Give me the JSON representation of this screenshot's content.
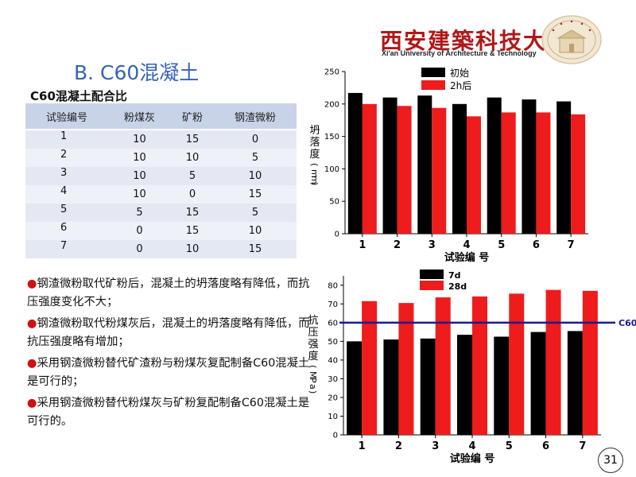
{
  "header": {
    "university_cn": "西安建築科技大學",
    "university_en": "Xi'an University of Architecture & Technology",
    "badge_colors": {
      "primary": "#b01818",
      "bg": "#f1e7d2"
    }
  },
  "slide": {
    "title": "B. C60混凝土",
    "page_number": "31"
  },
  "mix_table": {
    "title": "C60混凝土配合比",
    "headers": [
      "试验编号",
      "粉煤灰",
      "矿粉",
      "钢渣微粉"
    ],
    "rows": [
      [
        "1",
        "10",
        "15",
        "0"
      ],
      [
        "2",
        "10",
        "10",
        "5"
      ],
      [
        "3",
        "10",
        "5",
        "10"
      ],
      [
        "4",
        "10",
        "0",
        "15"
      ],
      [
        "5",
        "5",
        "15",
        "5"
      ],
      [
        "6",
        "0",
        "15",
        "10"
      ],
      [
        "7",
        "0",
        "10",
        "15"
      ]
    ]
  },
  "bullets": [
    "钢渣微粉取代矿粉后，混凝土的坍落度略有降低，而抗压强度变化不大；",
    "钢渣微粉取代粉煤灰后，混凝土的坍落度略有降低，而抗压强度略有增加；",
    "采用钢渣微粉替代矿渣粉与粉煤灰复配制备C60混凝土是可行的；",
    "采用钢渣微粉替代粉煤灰与矿粉复配制备C60混凝土是可行的。"
  ],
  "colors": {
    "black_series": "#000000",
    "red_series": "#ee1c1c",
    "c60_line": "#1a1a8c",
    "title_blue": "#3562b6"
  },
  "chart_data": [
    {
      "type": "bar",
      "categories": [
        "1",
        "2",
        "3",
        "4",
        "5",
        "6",
        "7"
      ],
      "series": [
        {
          "name": "初始",
          "values": [
            217,
            210,
            213,
            200,
            210,
            207,
            204
          ]
        },
        {
          "name": "2h后",
          "values": [
            200,
            197,
            194,
            181,
            187,
            187,
            184
          ]
        }
      ],
      "xlabel": "试验编 号",
      "ylabel": "坍落度(mm)",
      "ylim": [
        0,
        250
      ],
      "yticks": [
        0,
        50,
        100,
        150,
        200,
        250
      ],
      "legend": "top-left"
    },
    {
      "type": "bar",
      "categories": [
        "1",
        "2",
        "3",
        "4",
        "5",
        "6",
        "7"
      ],
      "series": [
        {
          "name": "7d",
          "values": [
            50,
            51,
            51.5,
            53.5,
            52.5,
            55,
            55.5
          ]
        },
        {
          "name": "28d",
          "values": [
            71.5,
            70.5,
            73.5,
            74,
            75.5,
            77.5,
            77
          ]
        }
      ],
      "reference_line": {
        "label": "C60",
        "value": 60
      },
      "xlabel": "试验编 号",
      "ylabel": "抗压强度(MPa)",
      "ylim": [
        0,
        85
      ],
      "yticks": [
        0,
        10,
        20,
        30,
        40,
        50,
        60,
        70,
        80
      ],
      "legend": "top-left"
    }
  ]
}
